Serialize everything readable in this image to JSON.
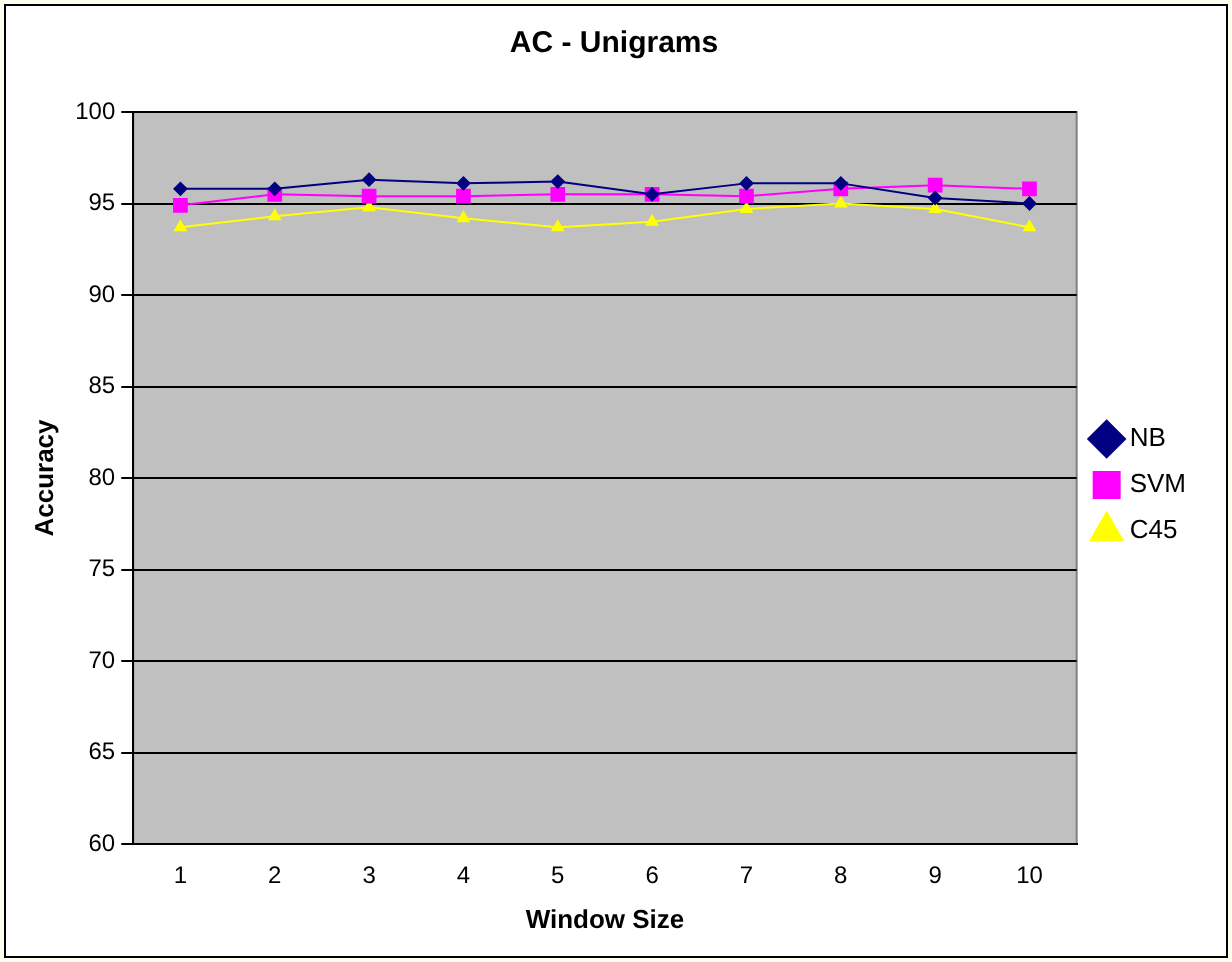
{
  "chart_data": {
    "type": "line",
    "title": "AC - Unigrams",
    "xlabel": "Window Size",
    "ylabel": "Accuracy",
    "categories": [
      "1",
      "2",
      "3",
      "4",
      "5",
      "6",
      "7",
      "8",
      "9",
      "10"
    ],
    "series": [
      {
        "name": "NB",
        "color": "#000080",
        "marker": "diamond",
        "values": [
          95.8,
          95.8,
          96.3,
          96.1,
          96.2,
          95.5,
          96.1,
          96.1,
          95.3,
          95.0
        ]
      },
      {
        "name": "SVM",
        "color": "#ff00ff",
        "marker": "square",
        "values": [
          94.9,
          95.5,
          95.4,
          95.4,
          95.5,
          95.5,
          95.4,
          95.8,
          96.0,
          95.8
        ]
      },
      {
        "name": "C45",
        "color": "#ffff00",
        "marker": "triangle",
        "values": [
          93.7,
          94.3,
          94.8,
          94.2,
          93.7,
          94.0,
          94.7,
          95.0,
          94.7,
          93.7
        ]
      }
    ],
    "ylim": [
      60,
      100
    ],
    "yticks": [
      60,
      65,
      70,
      75,
      80,
      85,
      90,
      95,
      100
    ],
    "grid": "y",
    "legend": "right"
  }
}
